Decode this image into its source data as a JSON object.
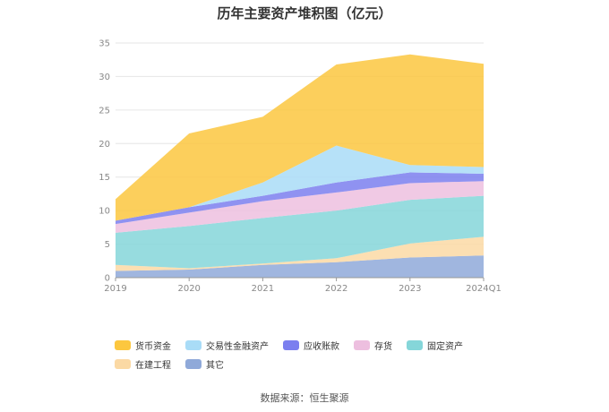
{
  "chart_data": {
    "type": "area",
    "stacked": true,
    "title": "历年主要资产堆积图（亿元）",
    "x": [
      "2019",
      "2020",
      "2021",
      "2022",
      "2023",
      "2024Q1"
    ],
    "ylim": [
      0,
      35
    ],
    "yticks": [
      0,
      5,
      10,
      15,
      20,
      25,
      30,
      35
    ],
    "grid": true,
    "legend_position": "bottom",
    "series": [
      {
        "name": "其它",
        "color": "#8fa9d9",
        "values": [
          1.0,
          1.2,
          1.9,
          2.3,
          3.0,
          3.3
        ]
      },
      {
        "name": "在建工程",
        "color": "#fbd9a4",
        "values": [
          0.9,
          0.2,
          0.2,
          0.6,
          2.1,
          2.8
        ]
      },
      {
        "name": "固定资产",
        "color": "#85d6d9",
        "values": [
          4.8,
          6.3,
          6.8,
          7.1,
          6.5,
          6.1
        ]
      },
      {
        "name": "存货",
        "color": "#edbfdf",
        "values": [
          1.3,
          2.0,
          2.5,
          2.7,
          2.5,
          2.2
        ]
      },
      {
        "name": "应收账款",
        "color": "#7b7fef",
        "values": [
          0.5,
          0.8,
          0.8,
          1.5,
          1.6,
          1.1
        ]
      },
      {
        "name": "交易性金融资产",
        "color": "#a9dcf7",
        "values": [
          0.0,
          0.0,
          2.0,
          5.5,
          1.1,
          1.0
        ]
      },
      {
        "name": "货币资金",
        "color": "#fcc73f",
        "values": [
          3.2,
          11.0,
          9.8,
          12.1,
          16.5,
          15.4
        ]
      }
    ]
  },
  "source_text": "数据来源：恒生聚源"
}
